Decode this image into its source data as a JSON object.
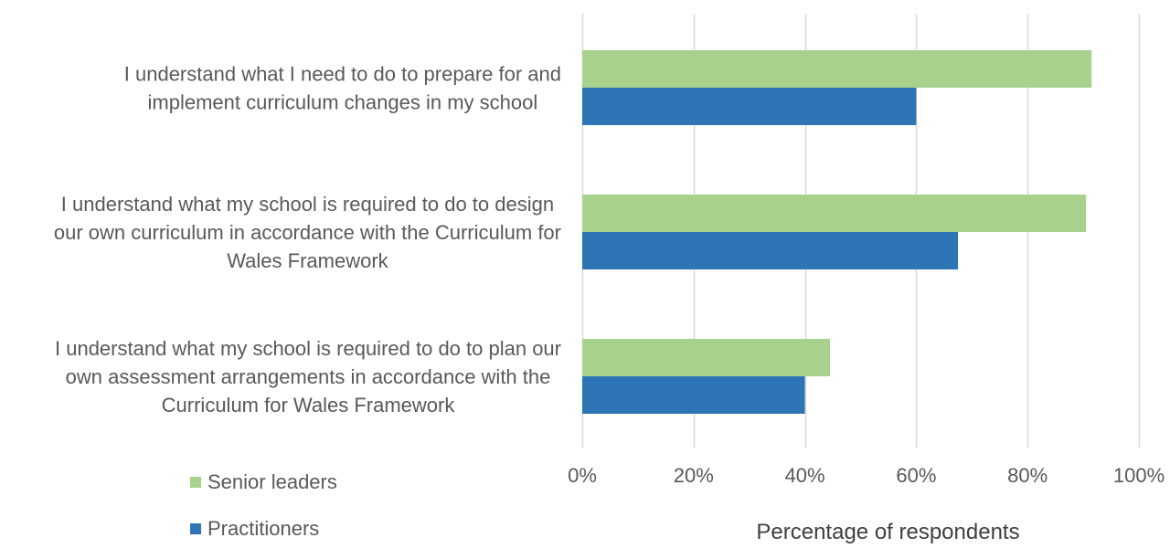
{
  "chart_data": {
    "type": "bar",
    "orientation": "horizontal",
    "categories": [
      "I understand what I need to do to prepare for and implement curriculum changes in my school",
      "I understand what my school is required to do to design our own curriculum in accordance with the Curriculum for Wales Framework",
      "I understand what my school is required to do to plan our own assessment arrangements in accordance with the Curriculum for Wales Framework"
    ],
    "category_lines": [
      [
        "I understand what I need to do to prepare for and",
        "implement curriculum changes in my school"
      ],
      [
        "I understand what my school is required to do to design",
        "our own curriculum in accordance with the Curriculum for",
        "Wales Framework"
      ],
      [
        "I understand what my school is required to do to plan our",
        "own assessment arrangements in accordance with the",
        "Curriculum for Wales Framework"
      ]
    ],
    "series": [
      {
        "name": "Senior leaders",
        "color": "#a9d18e",
        "values": [
          91.5,
          90.5,
          44.5
        ]
      },
      {
        "name": "Practitioners",
        "color": "#2e75b6",
        "values": [
          60,
          67.5,
          40
        ]
      }
    ],
    "xlabel": "Percentage of respondents",
    "xlim": [
      0,
      100
    ],
    "xticks": [
      0,
      20,
      40,
      60,
      80,
      100
    ],
    "xtick_labels": [
      "0%",
      "20%",
      "40%",
      "60%",
      "80%",
      "100%"
    ],
    "grid": true,
    "gridline_color": "#d9d9d9",
    "legend_position": "bottom-left"
  }
}
